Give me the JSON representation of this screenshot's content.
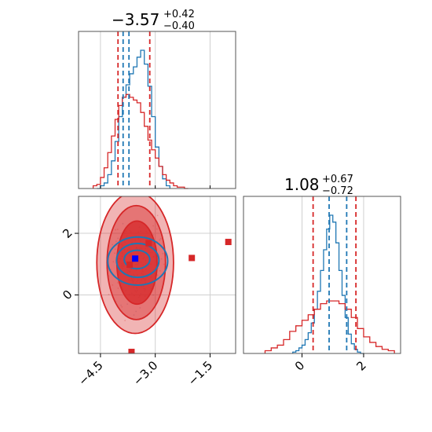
{
  "colors": {
    "blue": "#1f77b4",
    "red": "#d62728",
    "grid": "#d0d0d0",
    "axis": "#555555"
  },
  "titles": {
    "param1": {
      "median": "−3.57",
      "plus": "+0.42",
      "minus": "−0.40"
    },
    "param2": {
      "median": "1.08",
      "plus": "+0.67",
      "minus": "−0.72"
    }
  },
  "chart_data": [
    {
      "panel": "top-left marginal histogram (parameter 1)",
      "type": "histogram",
      "xlim": [
        -5.1,
        -0.8
      ],
      "grid": true,
      "series": [
        {
          "color": "blue",
          "bin_edges": [
            -4.6,
            -4.5,
            -4.4,
            -4.3,
            -4.2,
            -4.1,
            -4.0,
            -3.9,
            -3.8,
            -3.7,
            -3.6,
            -3.5,
            -3.4,
            -3.3,
            -3.2,
            -3.1,
            -3.0,
            -2.9,
            -2.8,
            -2.7,
            -2.6
          ],
          "counts": [
            0,
            0.02,
            0.04,
            0.1,
            0.2,
            0.34,
            0.52,
            0.66,
            0.75,
            0.83,
            0.88,
            0.95,
            1.0,
            0.9,
            0.74,
            0.52,
            0.3,
            0.16,
            0.07,
            0.02
          ]
        },
        {
          "color": "red",
          "bin_edges": [
            -4.7,
            -4.6,
            -4.5,
            -4.4,
            -4.3,
            -4.2,
            -4.1,
            -4.0,
            -3.9,
            -3.8,
            -3.7,
            -3.6,
            -3.5,
            -3.4,
            -3.3,
            -3.2,
            -3.1,
            -3.0,
            -2.9,
            -2.8,
            -2.7,
            -2.6,
            -2.5,
            -2.4,
            -2.3,
            -2.2,
            -2.1
          ],
          "counts": [
            0.02,
            0.03,
            0.08,
            0.15,
            0.26,
            0.38,
            0.5,
            0.6,
            0.66,
            0.68,
            0.66,
            0.64,
            0.62,
            0.55,
            0.45,
            0.35,
            0.28,
            0.22,
            0.16,
            0.1,
            0.06,
            0.04,
            0.02,
            0.01,
            0.01,
            0.0
          ]
        }
      ],
      "vlines": [
        {
          "x": -4.02,
          "color": "red"
        },
        {
          "x": -3.88,
          "color": "blue"
        },
        {
          "x": -3.72,
          "color": "blue"
        },
        {
          "x": -3.15,
          "color": "red"
        }
      ]
    },
    {
      "panel": "bottom-left 2D corner plot",
      "type": "scatter",
      "xlim": [
        -5.1,
        -0.8
      ],
      "ylim": [
        -1.9,
        3.2
      ],
      "grid": true,
      "xticks": [
        -4.5,
        -3.0,
        -1.5
      ],
      "xtick_labels": [
        "−4.5",
        "−3.0",
        "−1.5"
      ],
      "yticks": [
        0,
        2
      ],
      "ytick_labels": [
        "0",
        "2"
      ],
      "red_contours": [
        {
          "cx": -3.55,
          "cy": 1.05,
          "rx": 1.05,
          "ry": 2.3
        },
        {
          "cx": -3.52,
          "cy": 1.05,
          "rx": 0.8,
          "ry": 1.85
        },
        {
          "cx": -3.5,
          "cy": 1.05,
          "rx": 0.55,
          "ry": 1.35
        }
      ],
      "blue_contours": [
        {
          "cx": -3.48,
          "cy": 1.1,
          "rx": 0.82,
          "ry": 0.78
        },
        {
          "cx": -3.48,
          "cy": 1.12,
          "rx": 0.58,
          "ry": 0.55
        },
        {
          "cx": -3.5,
          "cy": 1.15,
          "rx": 0.35,
          "ry": 0.3
        }
      ],
      "red_markers": [
        {
          "x": -3.7,
          "y": 0.98
        },
        {
          "x": -3.18,
          "y": 1.68
        },
        {
          "x": -2.0,
          "y": 1.2
        },
        {
          "x": -1.0,
          "y": 1.72
        },
        {
          "x": -3.65,
          "y": -1.85
        }
      ],
      "blue_markers": [
        {
          "x": -3.55,
          "y": 1.18
        }
      ]
    },
    {
      "panel": "bottom-right marginal histogram (parameter 2)",
      "type": "histogram",
      "xlim": [
        -1.9,
        3.2
      ],
      "grid": true,
      "xticks": [
        0,
        2
      ],
      "xtick_labels": [
        "0",
        "2"
      ],
      "series": [
        {
          "color": "blue",
          "bin_edges": [
            -0.3,
            -0.2,
            -0.1,
            0.0,
            0.1,
            0.2,
            0.3,
            0.4,
            0.5,
            0.6,
            0.7,
            0.8,
            0.9,
            1.0,
            1.1,
            1.2,
            1.3,
            1.4,
            1.5,
            1.6,
            1.7,
            1.8,
            1.9,
            2.0
          ],
          "counts": [
            0.01,
            0.02,
            0.04,
            0.06,
            0.1,
            0.15,
            0.22,
            0.32,
            0.45,
            0.6,
            0.75,
            0.9,
            1.0,
            0.95,
            0.8,
            0.6,
            0.42,
            0.26,
            0.14,
            0.07,
            0.03,
            0.01,
            0.0
          ]
        },
        {
          "color": "red",
          "bin_edges": [
            -1.2,
            -1.0,
            -0.8,
            -0.6,
            -0.4,
            -0.2,
            0.0,
            0.2,
            0.4,
            0.6,
            0.8,
            1.0,
            1.2,
            1.4,
            1.6,
            1.8,
            2.0,
            2.2,
            2.4,
            2.6,
            2.8,
            3.0
          ],
          "counts": [
            0.02,
            0.04,
            0.06,
            0.1,
            0.16,
            0.2,
            0.24,
            0.28,
            0.32,
            0.36,
            0.38,
            0.38,
            0.36,
            0.32,
            0.26,
            0.18,
            0.12,
            0.08,
            0.05,
            0.03,
            0.02
          ]
        }
      ],
      "vlines": [
        {
          "x": 0.36,
          "color": "red"
        },
        {
          "x": 0.88,
          "color": "blue"
        },
        {
          "x": 1.45,
          "color": "blue"
        },
        {
          "x": 1.75,
          "color": "red"
        }
      ]
    }
  ]
}
